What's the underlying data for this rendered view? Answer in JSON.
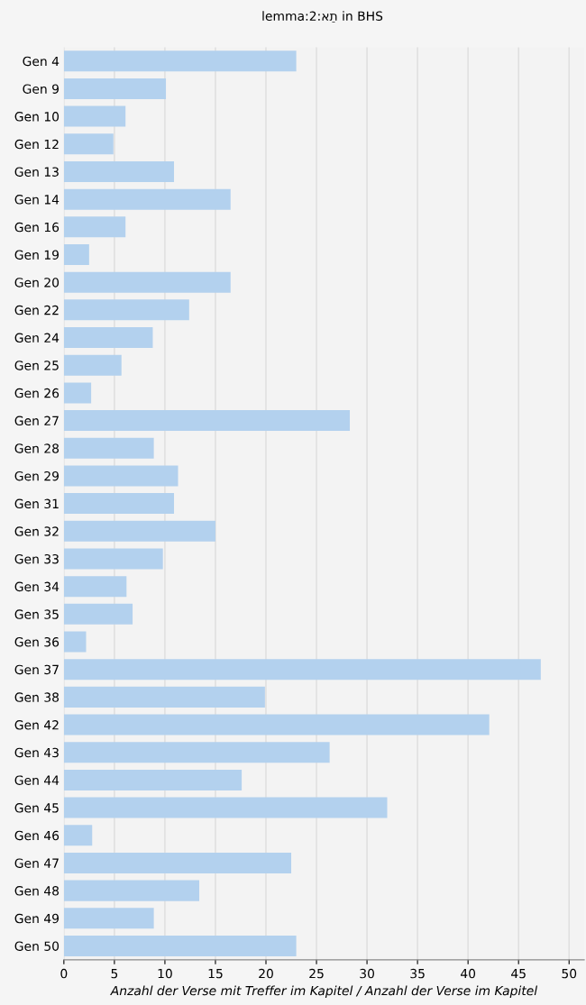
{
  "chart_data": {
    "type": "bar",
    "orientation": "horizontal",
    "title": "lemma:2:אֵת in BHS",
    "xlabel": "Anzahl der Verse mit Treffer im Kapitel / Anzahl der Verse im Kapitel",
    "categories": [
      "Gen 4",
      "Gen 9",
      "Gen 10",
      "Gen 12",
      "Gen 13",
      "Gen 14",
      "Gen 16",
      "Gen 19",
      "Gen 20",
      "Gen 22",
      "Gen 24",
      "Gen 25",
      "Gen 26",
      "Gen 27",
      "Gen 28",
      "Gen 29",
      "Gen 31",
      "Gen 32",
      "Gen 33",
      "Gen 34",
      "Gen 35",
      "Gen 36",
      "Gen 37",
      "Gen 38",
      "Gen 42",
      "Gen 43",
      "Gen 44",
      "Gen 45",
      "Gen 46",
      "Gen 47",
      "Gen 48",
      "Gen 49",
      "Gen 50"
    ],
    "values": [
      23.0,
      10.1,
      6.1,
      4.9,
      10.9,
      16.5,
      6.1,
      2.5,
      16.5,
      12.4,
      8.8,
      5.7,
      2.7,
      28.3,
      8.9,
      11.3,
      10.9,
      15.0,
      9.8,
      6.2,
      6.8,
      2.2,
      47.2,
      19.9,
      42.1,
      26.3,
      17.6,
      32.0,
      2.8,
      22.5,
      13.4,
      8.9,
      23.0
    ],
    "color": "#b3d1ee",
    "xlim": [
      0,
      51.5
    ],
    "xticks": [
      0,
      5,
      10,
      15,
      20,
      25,
      30,
      35,
      40,
      45,
      50
    ],
    "grid": "x"
  }
}
